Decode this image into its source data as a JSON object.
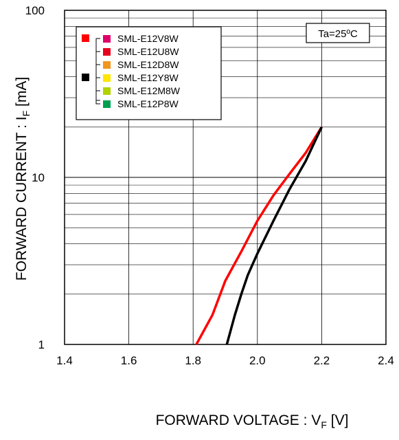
{
  "chart_data": {
    "type": "line",
    "x_axis": {
      "label_main": "FORWARD VOLTAGE",
      "label_symbol": "V",
      "label_subscript": "F",
      "label_unit": "[V]",
      "range": [
        1.4,
        2.4
      ],
      "ticks": [
        "1.4",
        "1.6",
        "1.8",
        "2.0",
        "2.2",
        "2.4"
      ],
      "scale": "linear"
    },
    "y_axis": {
      "label_main": "FORWARD CURRENT",
      "label_symbol": "I",
      "label_subscript": "F",
      "label_unit": "[mA]",
      "range": [
        1,
        100
      ],
      "ticks": [
        "1",
        "10",
        "100"
      ],
      "scale": "log"
    },
    "grid": true,
    "annotation": "Ta=25ºC",
    "legend": {
      "position": "top-left",
      "groups": [
        {
          "marker_color": "#ff0000",
          "items": [
            {
              "name": "SML-E12V8W",
              "color": "#e0006a"
            },
            {
              "name": "SML-E12U8W",
              "color": "#e8001c"
            },
            {
              "name": "SML-E12D8W",
              "color": "#f0961e"
            }
          ]
        },
        {
          "marker_color": "#000000",
          "items": [
            {
              "name": "SML-E12Y8W",
              "color": "#ffe600"
            },
            {
              "name": "SML-E12M8W",
              "color": "#b4d200"
            },
            {
              "name": "SML-E12P8W",
              "color": "#00a050"
            }
          ]
        }
      ]
    },
    "series": [
      {
        "color": "#ff0000",
        "points": [
          [
            1.81,
            1.0
          ],
          [
            1.86,
            1.5
          ],
          [
            1.9,
            2.4
          ],
          [
            1.95,
            3.6
          ],
          [
            2.0,
            5.5
          ],
          [
            2.05,
            7.8
          ],
          [
            2.1,
            10.5
          ],
          [
            2.15,
            14.0
          ],
          [
            2.2,
            20.0
          ]
        ]
      },
      {
        "color": "#000000",
        "points": [
          [
            1.905,
            1.0
          ],
          [
            1.93,
            1.5
          ],
          [
            1.95,
            2.0
          ],
          [
            1.97,
            2.6
          ],
          [
            2.0,
            3.5
          ],
          [
            2.05,
            5.5
          ],
          [
            2.1,
            8.5
          ],
          [
            2.15,
            12.5
          ],
          [
            2.2,
            20.0
          ]
        ]
      }
    ]
  }
}
